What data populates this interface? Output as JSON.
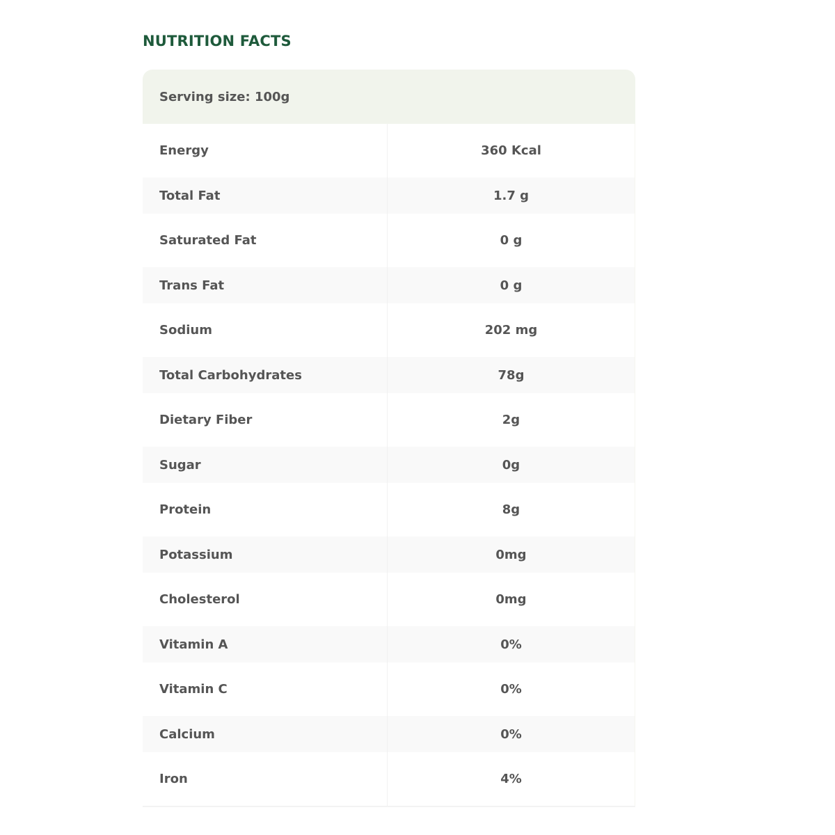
{
  "title": "NUTRITION FACTS",
  "serving_size": "Serving size: 100g",
  "colors": {
    "title": "#1e5a3b",
    "header_bg": "#f1f4ec",
    "stripe": "#f9f9f9"
  },
  "rows": [
    {
      "name": "Energy",
      "value": "360 Kcal"
    },
    {
      "name": "Total Fat",
      "value": "1.7 g"
    },
    {
      "name": "Saturated Fat",
      "value": "0 g"
    },
    {
      "name": "Trans Fat",
      "value": "0 g"
    },
    {
      "name": "Sodium",
      "value": "202 mg"
    },
    {
      "name": "Total Carbohydrates",
      "value": "78g"
    },
    {
      "name": "Dietary Fiber",
      "value": "2g"
    },
    {
      "name": "Sugar",
      "value": "0g"
    },
    {
      "name": "Protein",
      "value": "8g"
    },
    {
      "name": "Potassium",
      "value": "0mg"
    },
    {
      "name": "Cholesterol",
      "value": "0mg"
    },
    {
      "name": "Vitamin A",
      "value": "0%"
    },
    {
      "name": "Vitamin C",
      "value": "0%"
    },
    {
      "name": "Calcium",
      "value": "0%"
    },
    {
      "name": "Iron",
      "value": "4%"
    }
  ]
}
